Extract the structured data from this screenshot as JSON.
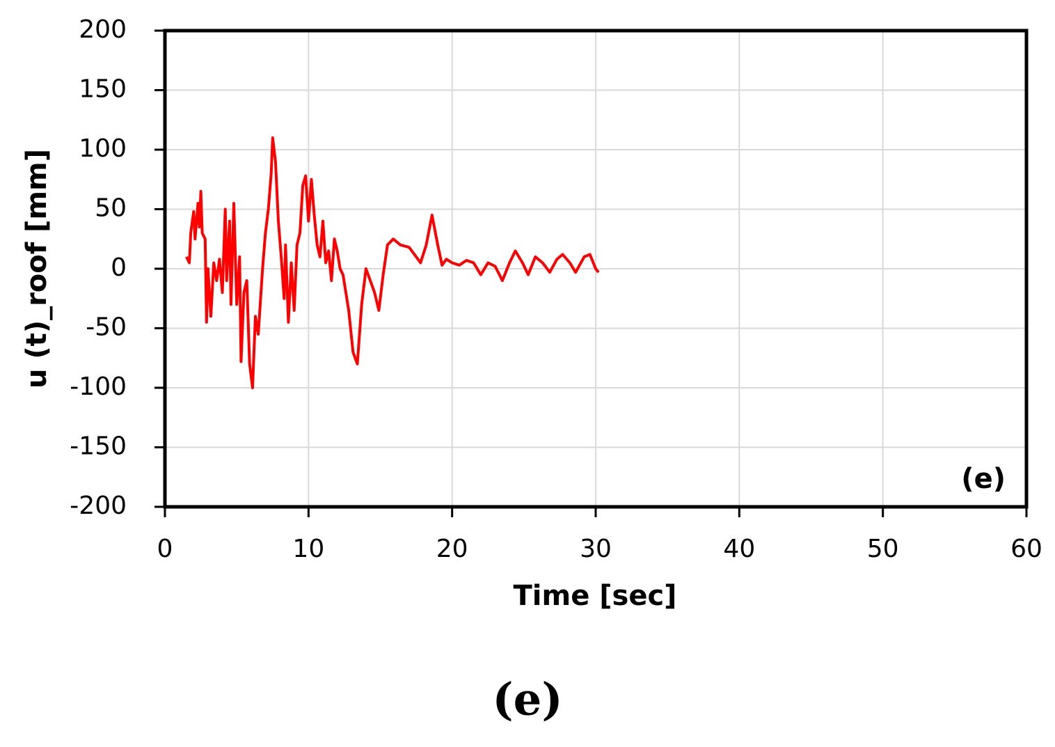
{
  "chart_data": {
    "type": "line",
    "xlabel": "Time [sec]",
    "ylabel": "u (t)_roof [mm]",
    "annotation": "(e)",
    "caption": "(e)",
    "color": "#ff0000",
    "grid": true,
    "xlim": [
      0,
      60
    ],
    "xticks": [
      0,
      10,
      20,
      30,
      40,
      50,
      60
    ],
    "ylim": [
      -200,
      200
    ],
    "yticks": [
      -200,
      -150,
      -100,
      -50,
      0,
      50,
      100,
      150,
      200
    ],
    "x": [
      1.5,
      1.7,
      1.8,
      2.0,
      2.1,
      2.3,
      2.4,
      2.5,
      2.6,
      2.8,
      2.9,
      3.0,
      3.2,
      3.4,
      3.6,
      3.8,
      4.0,
      4.2,
      4.3,
      4.5,
      4.6,
      4.8,
      5.0,
      5.2,
      5.3,
      5.5,
      5.7,
      5.9,
      6.1,
      6.3,
      6.5,
      6.8,
      7.0,
      7.2,
      7.4,
      7.5,
      7.7,
      7.9,
      8.1,
      8.3,
      8.4,
      8.6,
      8.8,
      9.0,
      9.2,
      9.4,
      9.6,
      9.8,
      10.0,
      10.2,
      10.4,
      10.6,
      10.8,
      11.0,
      11.2,
      11.4,
      11.6,
      11.8,
      12.0,
      12.2,
      12.4,
      12.8,
      13.1,
      13.4,
      13.7,
      14.0,
      14.3,
      14.6,
      14.9,
      15.2,
      15.5,
      15.9,
      16.4,
      17.0,
      17.5,
      17.8,
      18.2,
      18.6,
      19.0,
      19.3,
      19.6,
      20.0,
      20.5,
      21.0,
      21.5,
      22.0,
      22.5,
      23.0,
      23.5,
      24.0,
      24.4,
      24.9,
      25.3,
      25.8,
      26.3,
      26.8,
      27.3,
      27.7,
      28.2,
      28.6,
      29.2,
      29.6,
      30.0,
      30.2
    ],
    "values": [
      10,
      5,
      30,
      48,
      25,
      55,
      35,
      65,
      30,
      25,
      -45,
      0,
      -40,
      5,
      -10,
      8,
      -20,
      50,
      -10,
      40,
      -30,
      55,
      -30,
      10,
      -78,
      -20,
      -10,
      -80,
      -100,
      -40,
      -55,
      0,
      30,
      50,
      80,
      110,
      90,
      40,
      10,
      -25,
      20,
      -45,
      5,
      -35,
      20,
      30,
      70,
      78,
      40,
      75,
      45,
      20,
      10,
      40,
      5,
      15,
      -10,
      25,
      15,
      0,
      -5,
      -35,
      -70,
      -80,
      -30,
      0,
      -10,
      -20,
      -35,
      -5,
      20,
      25,
      20,
      18,
      10,
      5,
      20,
      45,
      20,
      3,
      8,
      5,
      3,
      7,
      5,
      -5,
      5,
      2,
      -10,
      5,
      15,
      5,
      -5,
      10,
      5,
      -3,
      8,
      12,
      5,
      -3,
      10,
      12,
      0,
      -3
    ]
  }
}
